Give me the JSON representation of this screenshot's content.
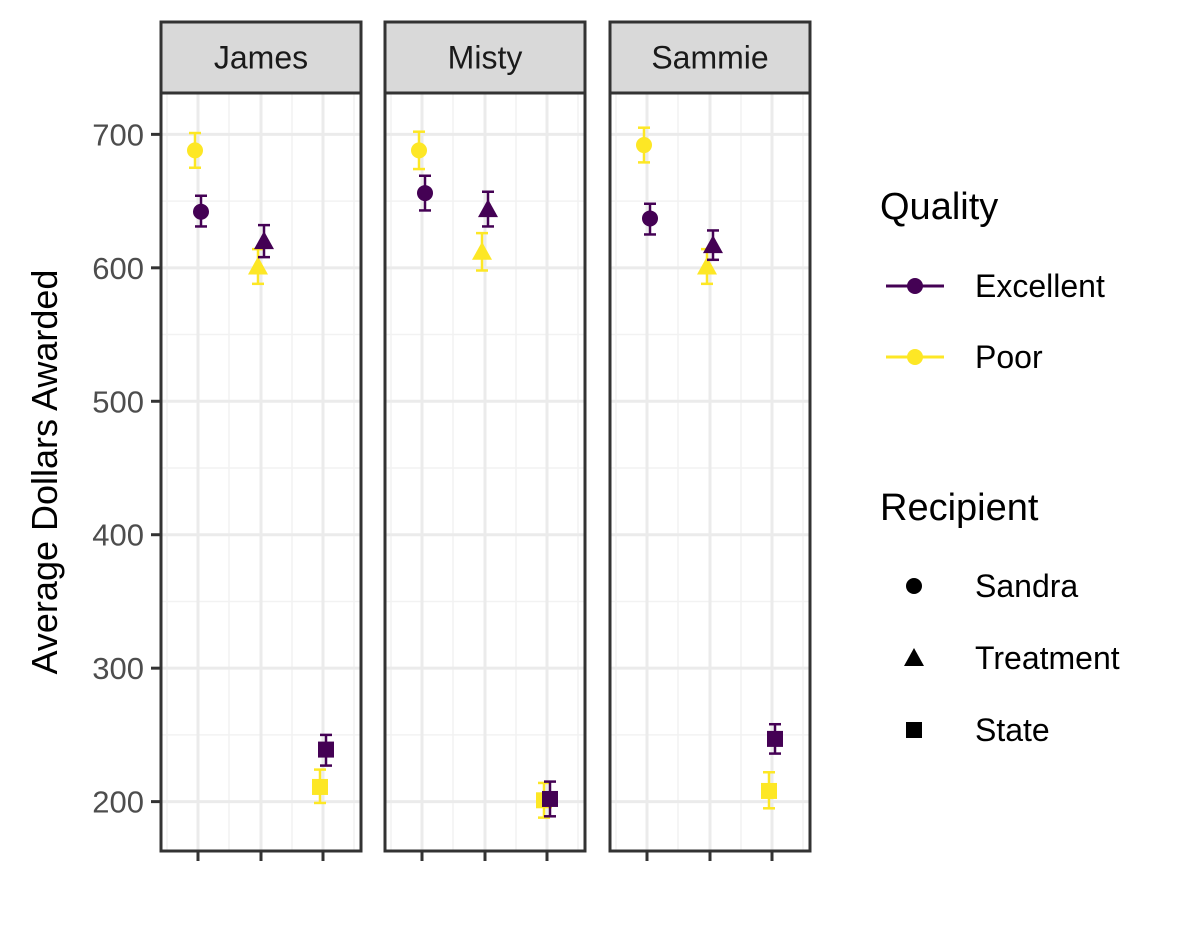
{
  "chart_data": {
    "type": "scatter",
    "facet_by": "panel",
    "panels": [
      "James",
      "Misty",
      "Sammie"
    ],
    "x_categories": [
      "Sandra",
      "Treatment",
      "State"
    ],
    "x_tick_labels_shown": false,
    "ylabel": "Average Dollars Awarded",
    "xlabel": "",
    "ylim": [
      163,
      731
    ],
    "yticks": [
      200,
      300,
      400,
      500,
      600,
      700
    ],
    "grid": true,
    "error_bars": true,
    "legend_placement": "right",
    "legends": [
      {
        "title": "Quality",
        "kind": "color",
        "entries": [
          {
            "label": "Excellent",
            "color": "#440154"
          },
          {
            "label": "Poor",
            "color": "#FDE725"
          }
        ]
      },
      {
        "title": "Recipient",
        "kind": "shape",
        "entries": [
          {
            "label": "Sandra",
            "shape": "circle"
          },
          {
            "label": "Treatment",
            "shape": "triangle"
          },
          {
            "label": "State",
            "shape": "square"
          }
        ]
      }
    ],
    "series": [
      {
        "name": "Excellent",
        "color": "#440154",
        "points": [
          {
            "panel": "James",
            "recipient": "Sandra",
            "y": 642,
            "ymin": 631,
            "ymax": 654
          },
          {
            "panel": "James",
            "recipient": "Treatment",
            "y": 620,
            "ymin": 608,
            "ymax": 632
          },
          {
            "panel": "James",
            "recipient": "State",
            "y": 239,
            "ymin": 227,
            "ymax": 250
          },
          {
            "panel": "Misty",
            "recipient": "Sandra",
            "y": 656,
            "ymin": 643,
            "ymax": 669
          },
          {
            "panel": "Misty",
            "recipient": "Treatment",
            "y": 644,
            "ymin": 631,
            "ymax": 657
          },
          {
            "panel": "Misty",
            "recipient": "State",
            "y": 202,
            "ymin": 189,
            "ymax": 215
          },
          {
            "panel": "Sammie",
            "recipient": "Sandra",
            "y": 637,
            "ymin": 625,
            "ymax": 648
          },
          {
            "panel": "Sammie",
            "recipient": "Treatment",
            "y": 617,
            "ymin": 606,
            "ymax": 628
          },
          {
            "panel": "Sammie",
            "recipient": "State",
            "y": 247,
            "ymin": 236,
            "ymax": 258
          }
        ]
      },
      {
        "name": "Poor",
        "color": "#FDE725",
        "points": [
          {
            "panel": "James",
            "recipient": "Sandra",
            "y": 688,
            "ymin": 675,
            "ymax": 701
          },
          {
            "panel": "James",
            "recipient": "Treatment",
            "y": 601,
            "ymin": 588,
            "ymax": 614
          },
          {
            "panel": "James",
            "recipient": "State",
            "y": 211,
            "ymin": 199,
            "ymax": 224
          },
          {
            "panel": "Misty",
            "recipient": "Sandra",
            "y": 688,
            "ymin": 674,
            "ymax": 702
          },
          {
            "panel": "Misty",
            "recipient": "Treatment",
            "y": 612,
            "ymin": 598,
            "ymax": 626
          },
          {
            "panel": "Misty",
            "recipient": "State",
            "y": 201,
            "ymin": 188,
            "ymax": 214
          },
          {
            "panel": "Sammie",
            "recipient": "Sandra",
            "y": 692,
            "ymin": 679,
            "ymax": 705
          },
          {
            "panel": "Sammie",
            "recipient": "Treatment",
            "y": 601,
            "ymin": 588,
            "ymax": 614
          },
          {
            "panel": "Sammie",
            "recipient": "State",
            "y": 208,
            "ymin": 195,
            "ymax": 222
          }
        ]
      }
    ]
  }
}
